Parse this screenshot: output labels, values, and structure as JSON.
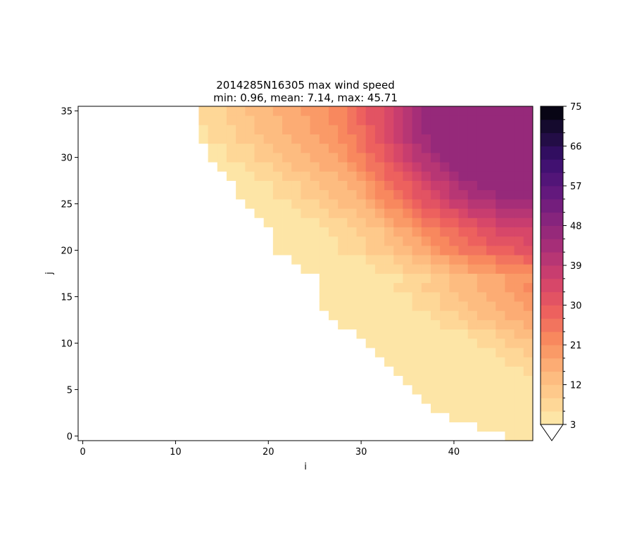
{
  "chart_data": {
    "type": "heatmap",
    "title": "2014285N16305 max wind speed",
    "subtitle": "min: 0.96, mean: 7.14, max: 45.71",
    "xlabel": "i",
    "ylabel": "j",
    "x_ticks": [
      "0",
      "10",
      "20",
      "30",
      "40"
    ],
    "y_ticks": [
      "0",
      "5",
      "10",
      "15",
      "20",
      "25",
      "30",
      "35"
    ],
    "xlim": [
      -0.5,
      48.5
    ],
    "ylim": [
      -0.5,
      35.5
    ],
    "colormap": "magma_r",
    "colorbar": {
      "min": 3,
      "max": 75,
      "step": 3,
      "extend": "min",
      "tick_labels": [
        "3",
        "12",
        "21",
        "30",
        "39",
        "48",
        "57",
        "66",
        "75"
      ]
    },
    "missing_region": {
      "description": "cells left of the storm-track boundary are masked (blank)",
      "first_valid_i_by_row": [
        46,
        43,
        40,
        38,
        37,
        36,
        35,
        34,
        33,
        32,
        31,
        30,
        28,
        27,
        26,
        26,
        25,
        26,
        24,
        23,
        21,
        21,
        21,
        20,
        19,
        18,
        17,
        17,
        16,
        15,
        14,
        14,
        13,
        13,
        13,
        13
      ]
    },
    "value_model": {
      "description": "approximate max wind speed (data units) read from the color field; rises toward the upper-right corner",
      "peak_value": 45.71,
      "peak_cell": [
        44,
        33
      ]
    }
  }
}
